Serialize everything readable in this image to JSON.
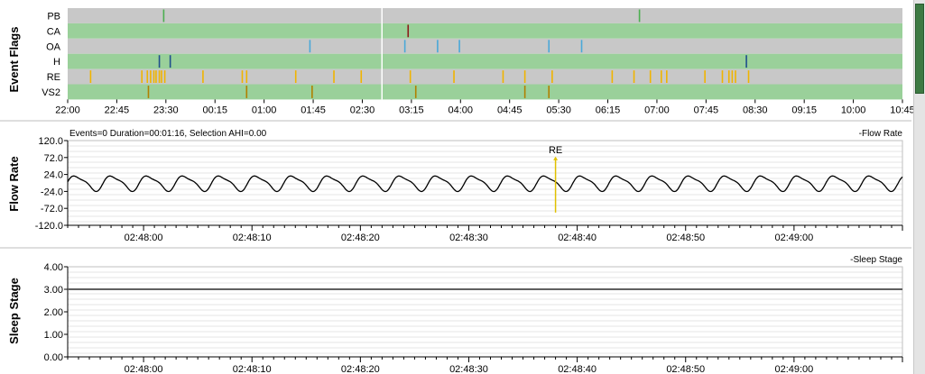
{
  "panels": {
    "event_flags": {
      "label": "Event Flags"
    },
    "flow_rate": {
      "label": "Flow Rate",
      "info": "Events=0 Duration=00:01:16, Selection AHI=0.00",
      "legend": "-Flow Rate",
      "annotation": "RE"
    },
    "sleep_stage": {
      "label": "Sleep Stage",
      "legend": "-Sleep Stage"
    }
  },
  "colors": {
    "row_green": "#9ad09a",
    "row_gray": "#c8c8c8",
    "PB": "#4caf50",
    "CA": "#8b1a1a",
    "OA": "#4aa8d8",
    "H": "#1f4e8c",
    "RE": "#f0b400",
    "VS2": "#b08000",
    "line": "#000000",
    "annotation": "#e0c000"
  },
  "chart_data": [
    {
      "type": "event_timeline",
      "rows": [
        "PB",
        "CA",
        "OA",
        "H",
        "RE",
        "VS2"
      ],
      "x_tick_labels": [
        "22:00",
        "22:45",
        "23:30",
        "00:15",
        "01:00",
        "01:45",
        "02:30",
        "03:15",
        "04:00",
        "04:45",
        "05:30",
        "06:15",
        "07:00",
        "07:45",
        "08:30",
        "09:15",
        "10:00",
        "10:45"
      ],
      "x_range_hours": [
        22.0,
        34.75
      ],
      "selection_marker": "02:48",
      "events": {
        "PB": [
          "23:28",
          "06:44"
        ],
        "CA": [
          "03:12"
        ],
        "OA": [
          "01:42",
          "03:09",
          "03:39",
          "03:59",
          "05:21",
          "05:51"
        ],
        "H": [
          "23:24",
          "23:34",
          "08:22"
        ],
        "RE": [
          "22:21",
          "23:08",
          "23:13",
          "23:16",
          "23:19",
          "23:21",
          "23:24",
          "23:26",
          "23:29",
          "00:04",
          "00:40",
          "00:44",
          "01:29",
          "02:04",
          "02:29",
          "03:14",
          "03:54",
          "04:39",
          "04:59",
          "05:24",
          "06:19",
          "06:39",
          "06:54",
          "07:04",
          "07:09",
          "07:44",
          "08:00",
          "08:06",
          "08:09",
          "08:12",
          "08:24"
        ],
        "VS2": [
          "23:14",
          "00:44",
          "01:44",
          "03:19",
          "04:59",
          "05:21"
        ]
      }
    },
    {
      "type": "line",
      "name": "Flow Rate",
      "y_ticks": [
        120.0,
        72.0,
        24.0,
        -24.0,
        -72.0,
        -120.0
      ],
      "ylim": [
        -120,
        120
      ],
      "x_tick_labels": [
        "02:48:00",
        "02:48:10",
        "02:48:20",
        "02:48:30",
        "02:48:40",
        "02:48:50",
        "02:49:00"
      ],
      "x_range_seconds": [
        -7,
        70
      ],
      "breaths_per_minute": 18,
      "amplitude": 20,
      "annotation_time": "02:48:38"
    },
    {
      "type": "line",
      "name": "Sleep Stage",
      "y_ticks": [
        4.0,
        3.0,
        2.0,
        1.0,
        0.0
      ],
      "ylim": [
        0,
        4
      ],
      "x_tick_labels": [
        "02:48:00",
        "02:48:10",
        "02:48:20",
        "02:48:30",
        "02:48:40",
        "02:48:50",
        "02:49:00"
      ],
      "x_range_seconds": [
        -7,
        70
      ],
      "value": 3.0
    }
  ]
}
